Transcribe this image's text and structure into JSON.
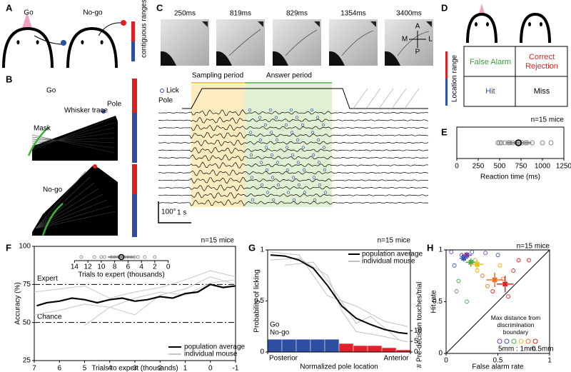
{
  "figure": {
    "A": {
      "label": "A",
      "go": "Go",
      "nogo": "No-go",
      "range_label": "contiguous ranges"
    },
    "B": {
      "label": "B",
      "go": "Go",
      "pole": "Pole",
      "whisker_trace": "Whisker trace",
      "mask": "Mask",
      "nogo": "No-go"
    },
    "C": {
      "label": "C",
      "frame_times": [
        "250ms",
        "819ms",
        "829ms",
        "1354ms",
        "3400ms"
      ],
      "compass": {
        "anterior": "A",
        "medial": "M",
        "lateral": "L",
        "posterior": "P"
      },
      "sampling_period": "Sampling period",
      "answer_period": "Answer period",
      "lick": "Lick",
      "pole": "Pole",
      "scale_angle": "100°",
      "scale_time": "1 s"
    },
    "D": {
      "label": "D",
      "cells": [
        [
          "False Alarm",
          "Correct Rejection"
        ],
        [
          "Hit",
          "Miss"
        ]
      ],
      "range_label": "Location range"
    },
    "E": {
      "label": "E",
      "chart_data": {
        "type": "scatter",
        "title": "n=15 mice",
        "xlabel": "Reaction time (ms)",
        "xlim": [
          0,
          1250
        ],
        "xticks": [
          0,
          250,
          500,
          750,
          1000,
          1250
        ],
        "x": [
          480,
          500,
          520,
          560,
          600,
          620,
          650,
          700,
          720,
          760,
          800,
          820,
          880,
          1000,
          1100
        ],
        "mean": 720,
        "sd": 150
      }
    },
    "F": {
      "label": "F",
      "chart_data": {
        "type": "line",
        "title": "n=15 mice",
        "xlabel": "Trials to expert (thousands)",
        "ylabel": "Accuracy (%)",
        "xlim": [
          7,
          -1
        ],
        "xticks": [
          7,
          6,
          5,
          4,
          3,
          2,
          1,
          0,
          -1
        ],
        "ylim": [
          25,
          100
        ],
        "yticks": [
          25,
          50,
          75,
          100
        ],
        "reference_lines": [
          {
            "label": "Expert",
            "value": 75
          },
          {
            "label": "Chance",
            "value": 50
          }
        ],
        "series": [
          {
            "name": "population average",
            "color": "#000000",
            "x": [
              6.9,
              6.5,
              6,
              5.5,
              5,
              4.5,
              4,
              3.5,
              3,
              2.5,
              2,
              1.5,
              1,
              0.5,
              0,
              -0.5,
              -1
            ],
            "values": [
              61,
              63,
              64,
              66,
              65,
              63,
              65,
              66,
              64,
              65,
              67,
              66,
              69,
              70,
              75,
              73,
              74
            ]
          },
          {
            "name": "individual mouse",
            "color": "#c8c8c8",
            "x": [
              7,
              6,
              5,
              4,
              3,
              2,
              1,
              0,
              -1
            ],
            "values": [
              55,
              58,
              62,
              60,
              66,
              70,
              68,
              76,
              78
            ]
          },
          {
            "name": "individual mouse",
            "color": "#c8c8c8",
            "x": [
              5,
              4,
              3,
              2,
              1,
              0,
              -1
            ],
            "values": [
              48,
              60,
              55,
              68,
              72,
              80,
              75
            ]
          },
          {
            "name": "individual mouse",
            "color": "#c8c8c8",
            "x": [
              7,
              6,
              5,
              4,
              3,
              2,
              1,
              0,
              -1
            ],
            "values": [
              70,
              72,
              74,
              66,
              70,
              73,
              78,
              84,
              80
            ]
          }
        ],
        "inset": {
          "xlabel": "Trials to expert (thousands)",
          "xlim": [
            15,
            -1
          ],
          "xticks": [
            14,
            12,
            10,
            8,
            6,
            4,
            2,
            0
          ],
          "x": [
            13,
            11,
            10,
            9.5,
            8.5,
            8,
            7.5,
            7,
            6.5,
            6,
            5.5,
            5,
            4.5,
            3.5,
            2
          ],
          "mean": 7,
          "sd": 2
        }
      }
    },
    "G": {
      "label": "G",
      "chart_data": {
        "type": "line",
        "title": "n=15 mice",
        "xlabel": "Normalized pole location",
        "ylabel": "Probability of licking",
        "y2label": "# Pre-decision touches/trial",
        "xlim": [
          0,
          1
        ],
        "xticks": [
          {
            "value": 0,
            "label": "Posterior"
          },
          {
            "value": 1,
            "label": "Anterior"
          }
        ],
        "ylim": [
          0,
          1
        ],
        "yticks": [
          0,
          0.5,
          1
        ],
        "y2lim": [
          0,
          48
        ],
        "y2ticks": [
          0,
          5,
          10
        ],
        "series": [
          {
            "name": "population average",
            "color": "#000000",
            "x": [
              0.02,
              0.12,
              0.22,
              0.32,
              0.42,
              0.52,
              0.62,
              0.72,
              0.82,
              0.92,
              0.98
            ],
            "values": [
              0.95,
              0.94,
              0.9,
              0.82,
              0.65,
              0.45,
              0.33,
              0.27,
              0.22,
              0.19,
              0.18
            ]
          },
          {
            "name": "individual mouse",
            "color": "#c0c0c0",
            "x": [
              0.02,
              0.22,
              0.42,
              0.52,
              0.62,
              0.82,
              0.98
            ],
            "values": [
              0.9,
              0.92,
              0.75,
              0.4,
              0.2,
              0.15,
              0.1
            ]
          },
          {
            "name": "individual mouse",
            "color": "#c0c0c0",
            "x": [
              0.02,
              0.22,
              0.42,
              0.52,
              0.62,
              0.82,
              0.98
            ],
            "values": [
              0.98,
              0.95,
              0.55,
              0.5,
              0.45,
              0.3,
              0.25
            ]
          },
          {
            "name": "individual mouse",
            "color": "#c0c0c0",
            "x": [
              0.12,
              0.32,
              0.42,
              0.62,
              0.72,
              0.92
            ],
            "values": [
              0.85,
              0.88,
              0.7,
              0.28,
              0.35,
              0.12
            ]
          }
        ],
        "bins": [
          0,
          0.1,
          0.2,
          0.3,
          0.4,
          0.5,
          0.6,
          0.7,
          0.8,
          0.9,
          1
        ],
        "bar_series": [
          {
            "name": "Go",
            "color": "#2e4ea3",
            "values": [
              6,
              6,
              6,
              6,
              6,
              null,
              null,
              null,
              null,
              null
            ]
          },
          {
            "name": "No-go",
            "color": "#e0202a",
            "values": [
              null,
              null,
              null,
              null,
              null,
              4,
              3,
              3,
              2,
              1
            ]
          }
        ]
      }
    },
    "H": {
      "label": "H",
      "chart_data": {
        "type": "scatter",
        "title": "n=15 mice",
        "xlabel": "False alarm rate",
        "ylabel": "Hit rate",
        "xlim": [
          0,
          1
        ],
        "ylim": [
          0,
          1
        ],
        "xticks": [
          0,
          0.5,
          1
        ],
        "yticks": [
          0,
          0.5,
          1
        ],
        "x": [
          0.05,
          0.08,
          0.12,
          0.15,
          0.1,
          0.25,
          0.3,
          0.35,
          0.28,
          0.4,
          0.45,
          0.52,
          0.6,
          0.55,
          0.65,
          0.7,
          0.2,
          0.38,
          0.5,
          0.8
        ],
        "y": [
          0.98,
          0.85,
          0.7,
          0.95,
          0.6,
          0.98,
          0.8,
          0.75,
          0.9,
          0.65,
          0.6,
          0.85,
          0.55,
          0.72,
          0.8,
          0.9,
          0.5,
          0.97,
          0.95,
          0.9
        ],
        "colors": [
          "#7b3fa0",
          "#3a55b0",
          "#4aaa4a",
          "#7b3fa0",
          "#4aaa4a",
          "#3a55b0",
          "#e8a020",
          "#f07020",
          "#a0c030",
          "#f07020",
          "#e02020",
          "#e8a020",
          "#e02020",
          "#f07020",
          "#e02020",
          "#e02020",
          "#4aaa4a",
          "#7b3fa0",
          "#3a55b0",
          "#e02020"
        ],
        "means": [
          {
            "color": "#7b3fa0",
            "x": 0.2,
            "y": 0.95,
            "xerr": 0.05,
            "yerr": 0.03
          },
          {
            "color": "#3a55b0",
            "x": 0.17,
            "y": 0.92,
            "xerr": 0.04,
            "yerr": 0.03
          },
          {
            "color": "#4aaa4a",
            "x": 0.24,
            "y": 0.88,
            "xerr": 0.05,
            "yerr": 0.04
          },
          {
            "color": "#e8c020",
            "x": 0.3,
            "y": 0.86,
            "xerr": 0.06,
            "yerr": 0.04
          },
          {
            "color": "#f07020",
            "x": 0.47,
            "y": 0.71,
            "xerr": 0.08,
            "yerr": 0.07
          },
          {
            "color": "#e02020",
            "x": 0.57,
            "y": 0.67,
            "xerr": 0.08,
            "yerr": 0.08
          }
        ],
        "annotation": "Max distance from discrimination boundary",
        "legend_labels": [
          "5mm : 1mm",
          "0.5mm"
        ]
      }
    }
  }
}
